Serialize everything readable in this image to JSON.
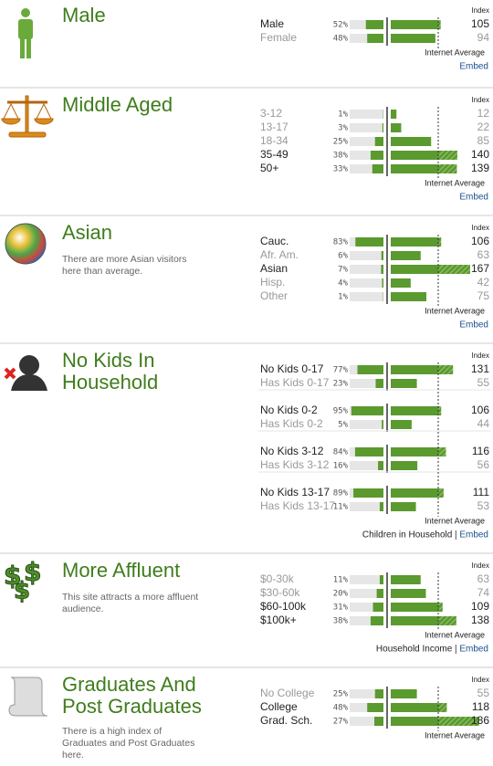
{
  "sections": [
    {
      "title": "Male",
      "index_header": "Index",
      "average_label": "Internet Average",
      "embed": "Embed",
      "groups": [
        [
          {
            "label": "Male",
            "pct": 52,
            "pct_label": "52%",
            "index": 105
          },
          {
            "label": "Female",
            "pct": 48,
            "pct_label": "48%",
            "index": 94
          }
        ]
      ]
    },
    {
      "title": "Middle Aged",
      "index_header": "Index",
      "average_label": "Internet Average",
      "embed": "Embed",
      "groups": [
        [
          {
            "label": "3-12",
            "pct": 1,
            "pct_label": "1%",
            "index": 12
          },
          {
            "label": "13-17",
            "pct": 3,
            "pct_label": "3%",
            "index": 22
          },
          {
            "label": "18-34",
            "pct": 25,
            "pct_label": "25%",
            "index": 85
          },
          {
            "label": "35-49",
            "pct": 38,
            "pct_label": "38%",
            "index": 140
          },
          {
            "label": "50+",
            "pct": 33,
            "pct_label": "33%",
            "index": 139
          }
        ]
      ]
    },
    {
      "title": "Asian",
      "description": "There are more Asian visitors here than average.",
      "index_header": "Index",
      "average_label": "Internet Average",
      "embed": "Embed",
      "groups": [
        [
          {
            "label": "Cauc.",
            "pct": 83,
            "pct_label": "83%",
            "index": 106
          },
          {
            "label": "Afr. Am.",
            "pct": 6,
            "pct_label": "6%",
            "index": 63
          },
          {
            "label": "Asian",
            "pct": 7,
            "pct_label": "7%",
            "index": 167
          },
          {
            "label": "Hisp.",
            "pct": 4,
            "pct_label": "4%",
            "index": 42
          },
          {
            "label": "Other",
            "pct": 1,
            "pct_label": "1%",
            "index": 75
          }
        ]
      ]
    },
    {
      "title": "No Kids In Household",
      "index_header": "Index",
      "average_label": "Internet Average",
      "footer_label": "Children in Household",
      "embed": "Embed",
      "groups": [
        [
          {
            "label": "No Kids 0-17",
            "pct": 77,
            "pct_label": "77%",
            "index": 131
          },
          {
            "label": "Has Kids 0-17",
            "pct": 23,
            "pct_label": "23%",
            "index": 55
          }
        ],
        [
          {
            "label": "No Kids 0-2",
            "pct": 95,
            "pct_label": "95%",
            "index": 106
          },
          {
            "label": "Has Kids 0-2",
            "pct": 5,
            "pct_label": "5%",
            "index": 44
          }
        ],
        [
          {
            "label": "No Kids 3-12",
            "pct": 84,
            "pct_label": "84%",
            "index": 116
          },
          {
            "label": "Has Kids 3-12",
            "pct": 16,
            "pct_label": "16%",
            "index": 56
          }
        ],
        [
          {
            "label": "No Kids 13-17",
            "pct": 89,
            "pct_label": "89%",
            "index": 111
          },
          {
            "label": "Has Kids 13-17",
            "pct": 11,
            "pct_label": "11%",
            "index": 53
          }
        ]
      ]
    },
    {
      "title": "More Affluent",
      "description": "This site attracts a more affluent audience.",
      "index_header": "Index",
      "average_label": "Internet Average",
      "footer_label": "Household Income",
      "embed": "Embed",
      "groups": [
        [
          {
            "label": "$0-30k",
            "pct": 11,
            "pct_label": "11%",
            "index": 63
          },
          {
            "label": "$30-60k",
            "pct": 20,
            "pct_label": "20%",
            "index": 74
          },
          {
            "label": "$60-100k",
            "pct": 31,
            "pct_label": "31%",
            "index": 109
          },
          {
            "label": "$100k+",
            "pct": 38,
            "pct_label": "38%",
            "index": 138
          }
        ]
      ]
    },
    {
      "title": "Graduates And Post Graduates",
      "description": "There is a high index of Graduates and Post Graduates here.",
      "index_header": "Index",
      "average_label": "Internet Average",
      "groups": [
        [
          {
            "label": "No College",
            "pct": 25,
            "pct_label": "25%",
            "index": 55
          },
          {
            "label": "College",
            "pct": 48,
            "pct_label": "48%",
            "index": 118
          },
          {
            "label": "Grad. Sch.",
            "pct": 27,
            "pct_label": "27%",
            "index": 186
          }
        ]
      ]
    }
  ]
}
